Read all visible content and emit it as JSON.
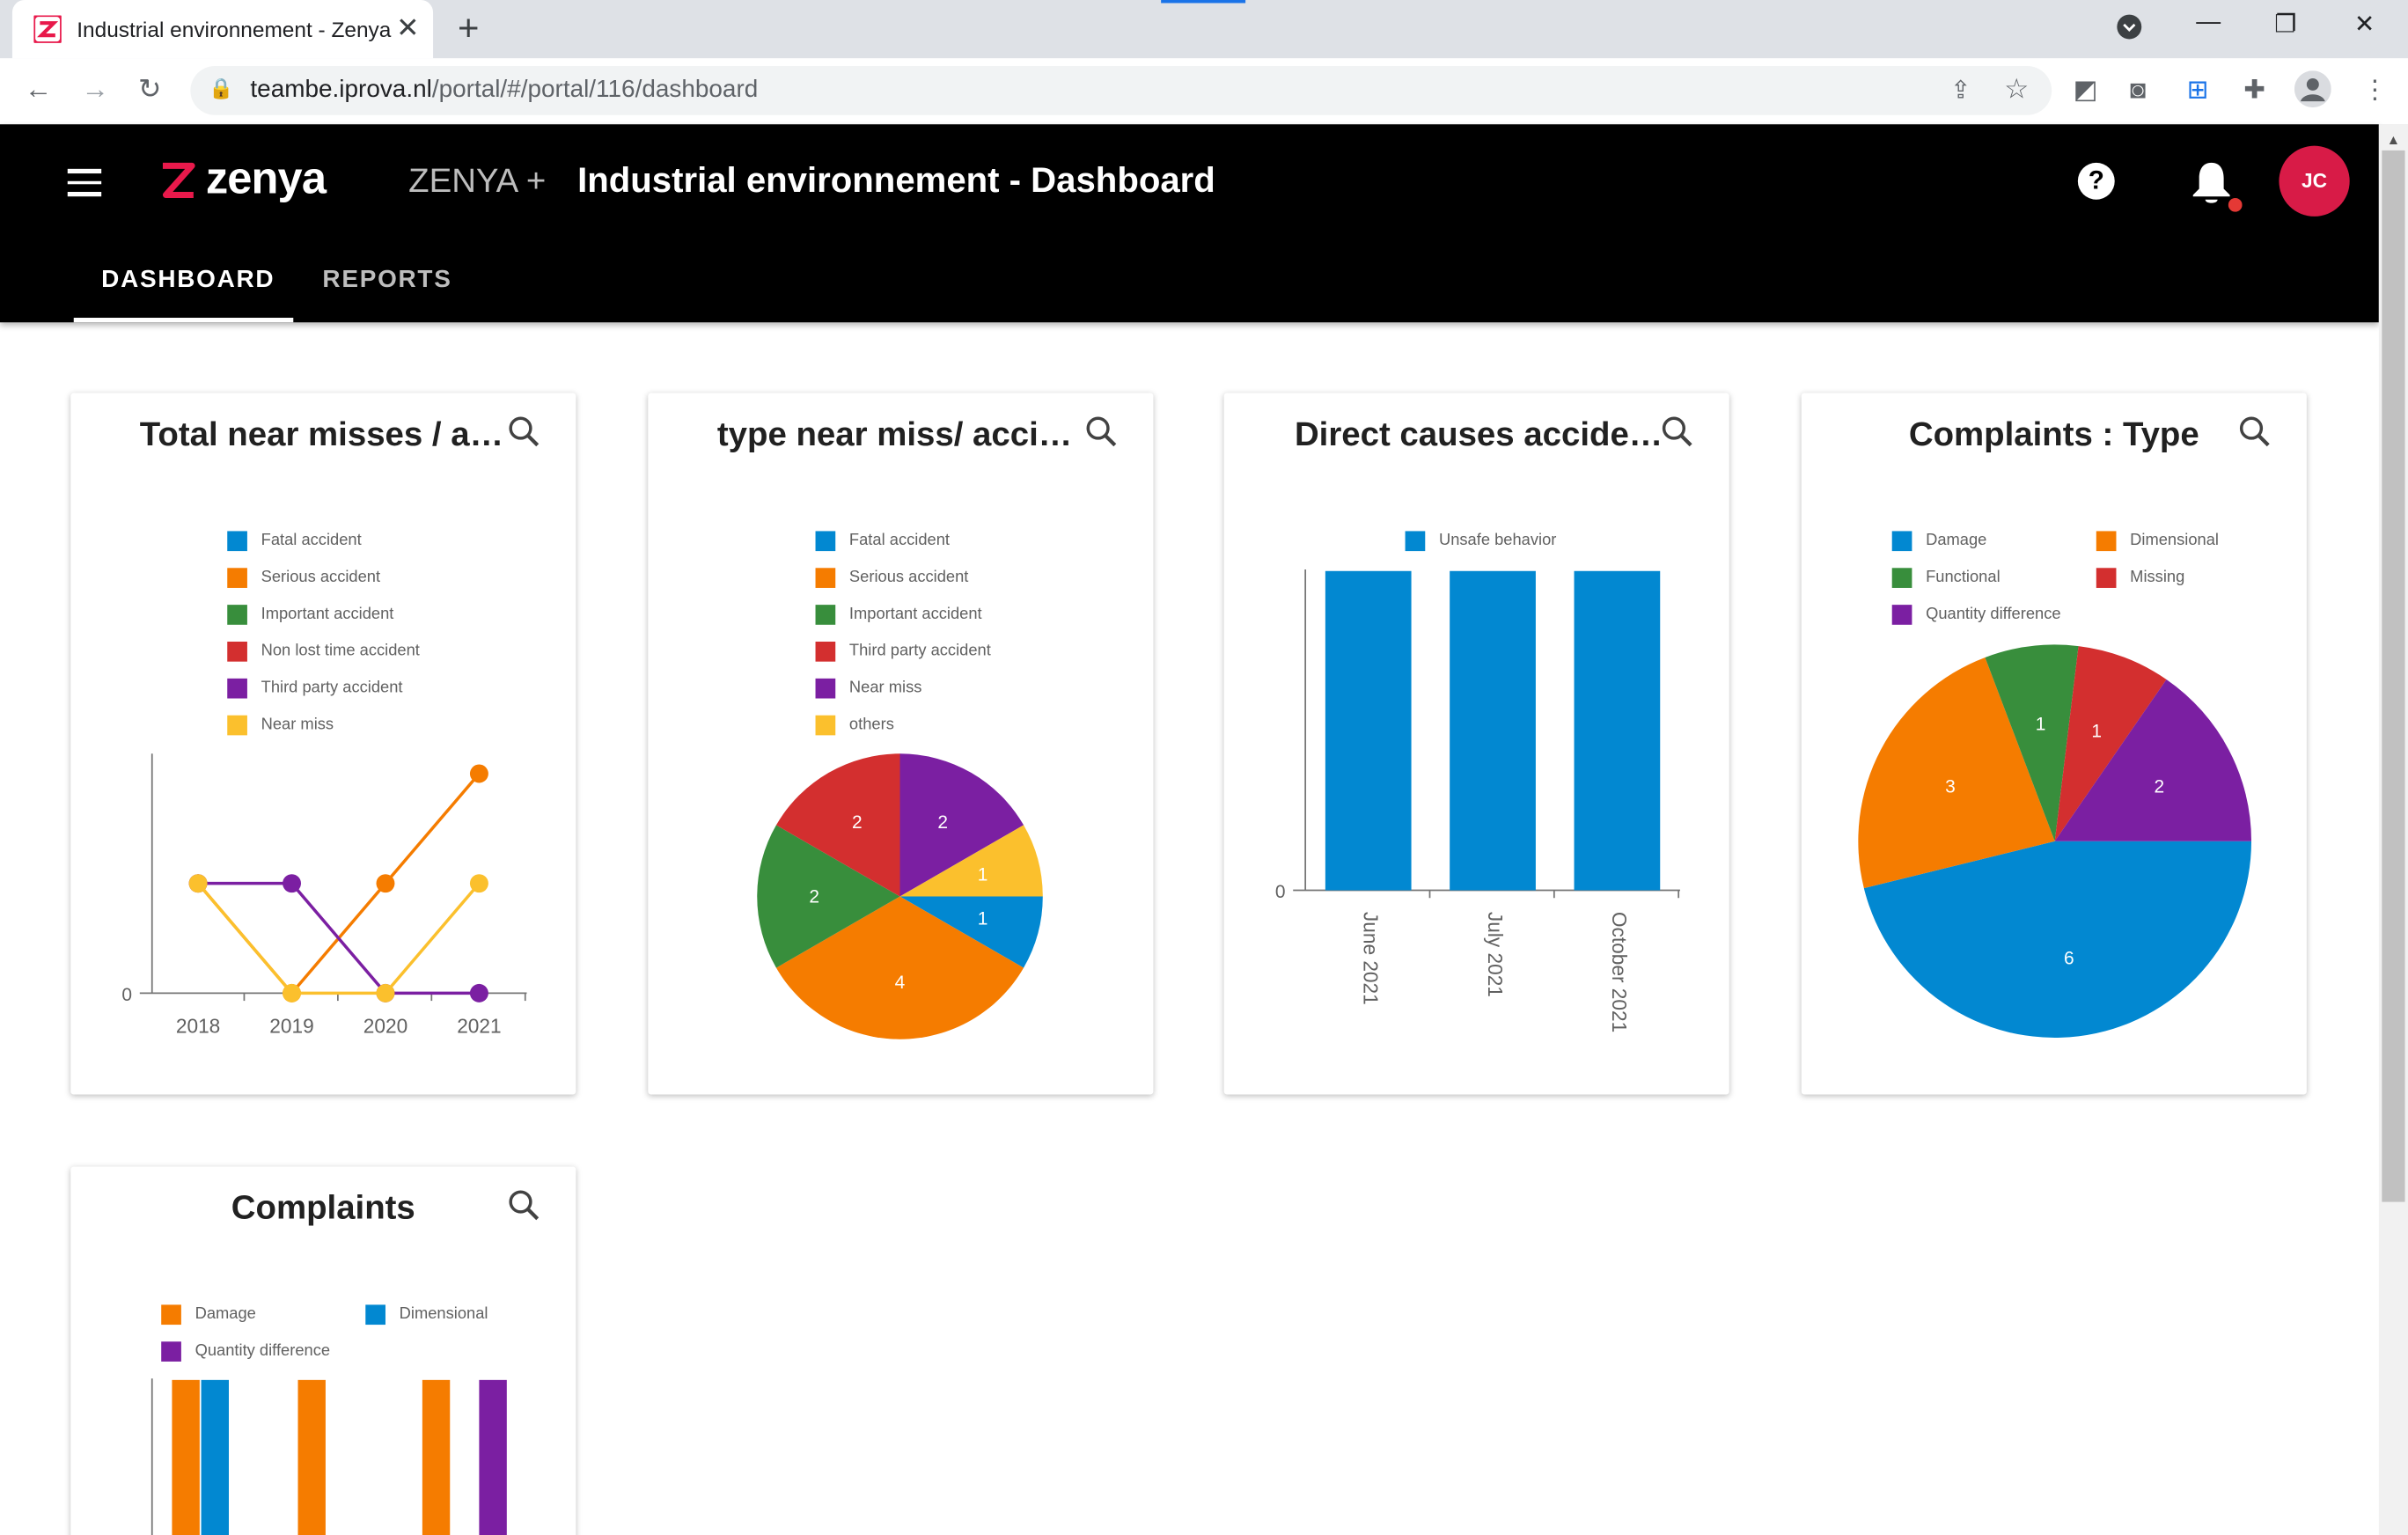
{
  "browser": {
    "tab_title": "Industrial environnement - Zenya",
    "url_host": "teambe.iprova.nl",
    "url_path": "/portal/#/portal/116/dashboard"
  },
  "app": {
    "brand": "zenya",
    "product": "ZENYA +",
    "page_title": "Industrial environnement - Dashboard",
    "avatar_initials": "JC",
    "tabs": [
      {
        "label": "DASHBOARD",
        "active": true
      },
      {
        "label": "REPORTS",
        "active": false
      }
    ]
  },
  "colors": {
    "blue": "#0288d1",
    "orange": "#f57c00",
    "green": "#388e3c",
    "red": "#d32f2f",
    "purple": "#7b1fa2",
    "yellow": "#fbc02d",
    "brand": "#e8194b"
  },
  "cards": [
    {
      "title": "Total near misses / a…"
    },
    {
      "title": "type near miss/ acci…"
    },
    {
      "title": "Direct causes accide…"
    },
    {
      "title": "Complaints : Type"
    },
    {
      "title": "Complaints"
    }
  ],
  "chart_data": [
    {
      "type": "line",
      "title": "Total near misses / a…",
      "x": [
        "2018",
        "2019",
        "2020",
        "2021"
      ],
      "yticks": [
        "0"
      ],
      "series": [
        {
          "name": "Fatal accident",
          "color": "blue",
          "values": [
            null,
            null,
            null,
            null
          ]
        },
        {
          "name": "Serious accident",
          "color": "orange",
          "values": [
            1,
            0,
            1,
            2
          ]
        },
        {
          "name": "Important accident",
          "color": "green",
          "values": [
            null,
            null,
            null,
            null
          ]
        },
        {
          "name": "Non lost time accident",
          "color": "red",
          "values": [
            null,
            null,
            null,
            null
          ]
        },
        {
          "name": "Third party accident",
          "color": "purple",
          "values": [
            1,
            1,
            0,
            0
          ]
        },
        {
          "name": "Near miss",
          "color": "yellow",
          "values": [
            1,
            0,
            0,
            1
          ]
        }
      ],
      "legend": "top"
    },
    {
      "type": "pie",
      "title": "type near miss/ acci…",
      "legend_items": [
        {
          "name": "Fatal accident",
          "color": "blue"
        },
        {
          "name": "Serious accident",
          "color": "orange"
        },
        {
          "name": "Important accident",
          "color": "green"
        },
        {
          "name": "Third party accident",
          "color": "red"
        },
        {
          "name": "Near miss",
          "color": "purple"
        },
        {
          "name": "others",
          "color": "yellow"
        }
      ],
      "slices": [
        {
          "name": "Fatal accident",
          "value": 1,
          "color": "blue"
        },
        {
          "name": "Serious accident",
          "value": 4,
          "color": "orange"
        },
        {
          "name": "Important accident",
          "value": 2,
          "color": "green"
        },
        {
          "name": "Third party accident",
          "value": 2,
          "color": "red"
        },
        {
          "name": "Near miss",
          "value": 2,
          "color": "purple"
        },
        {
          "name": "others",
          "value": 1,
          "color": "yellow"
        }
      ]
    },
    {
      "type": "bar",
      "title": "Direct causes accide…",
      "categories": [
        "June 2021",
        "July 2021",
        "October 2021"
      ],
      "yticks": [
        "0"
      ],
      "series": [
        {
          "name": "Unsafe behavior",
          "color": "blue",
          "values": [
            1,
            1,
            1
          ]
        }
      ]
    },
    {
      "type": "pie",
      "title": "Complaints : Type",
      "legend_items": [
        {
          "name": "Damage",
          "color": "blue"
        },
        {
          "name": "Dimensional",
          "color": "orange"
        },
        {
          "name": "Functional",
          "color": "green"
        },
        {
          "name": "Missing",
          "color": "red"
        },
        {
          "name": "Quantity difference",
          "color": "purple"
        }
      ],
      "slices": [
        {
          "name": "Damage",
          "value": 6,
          "color": "blue"
        },
        {
          "name": "Dimensional",
          "value": 3,
          "color": "orange"
        },
        {
          "name": "Functional",
          "value": 1,
          "color": "green"
        },
        {
          "name": "Missing",
          "value": 1,
          "color": "red"
        },
        {
          "name": "Quantity difference",
          "value": 2,
          "color": "purple"
        }
      ]
    },
    {
      "type": "bar",
      "title": "Complaints",
      "legend_items": [
        {
          "name": "Damage",
          "color": "orange"
        },
        {
          "name": "Dimensional",
          "color": "blue"
        },
        {
          "name": "Quantity difference",
          "color": "purple"
        }
      ],
      "groups": [
        [
          {
            "series": "Damage",
            "color": "orange"
          },
          {
            "series": "Dimensional",
            "color": "blue"
          }
        ],
        [
          {
            "series": "Damage",
            "color": "orange"
          }
        ],
        [
          {
            "series": "Damage",
            "color": "orange"
          },
          {
            "series": "Quantity difference",
            "color": "purple"
          }
        ]
      ]
    }
  ]
}
